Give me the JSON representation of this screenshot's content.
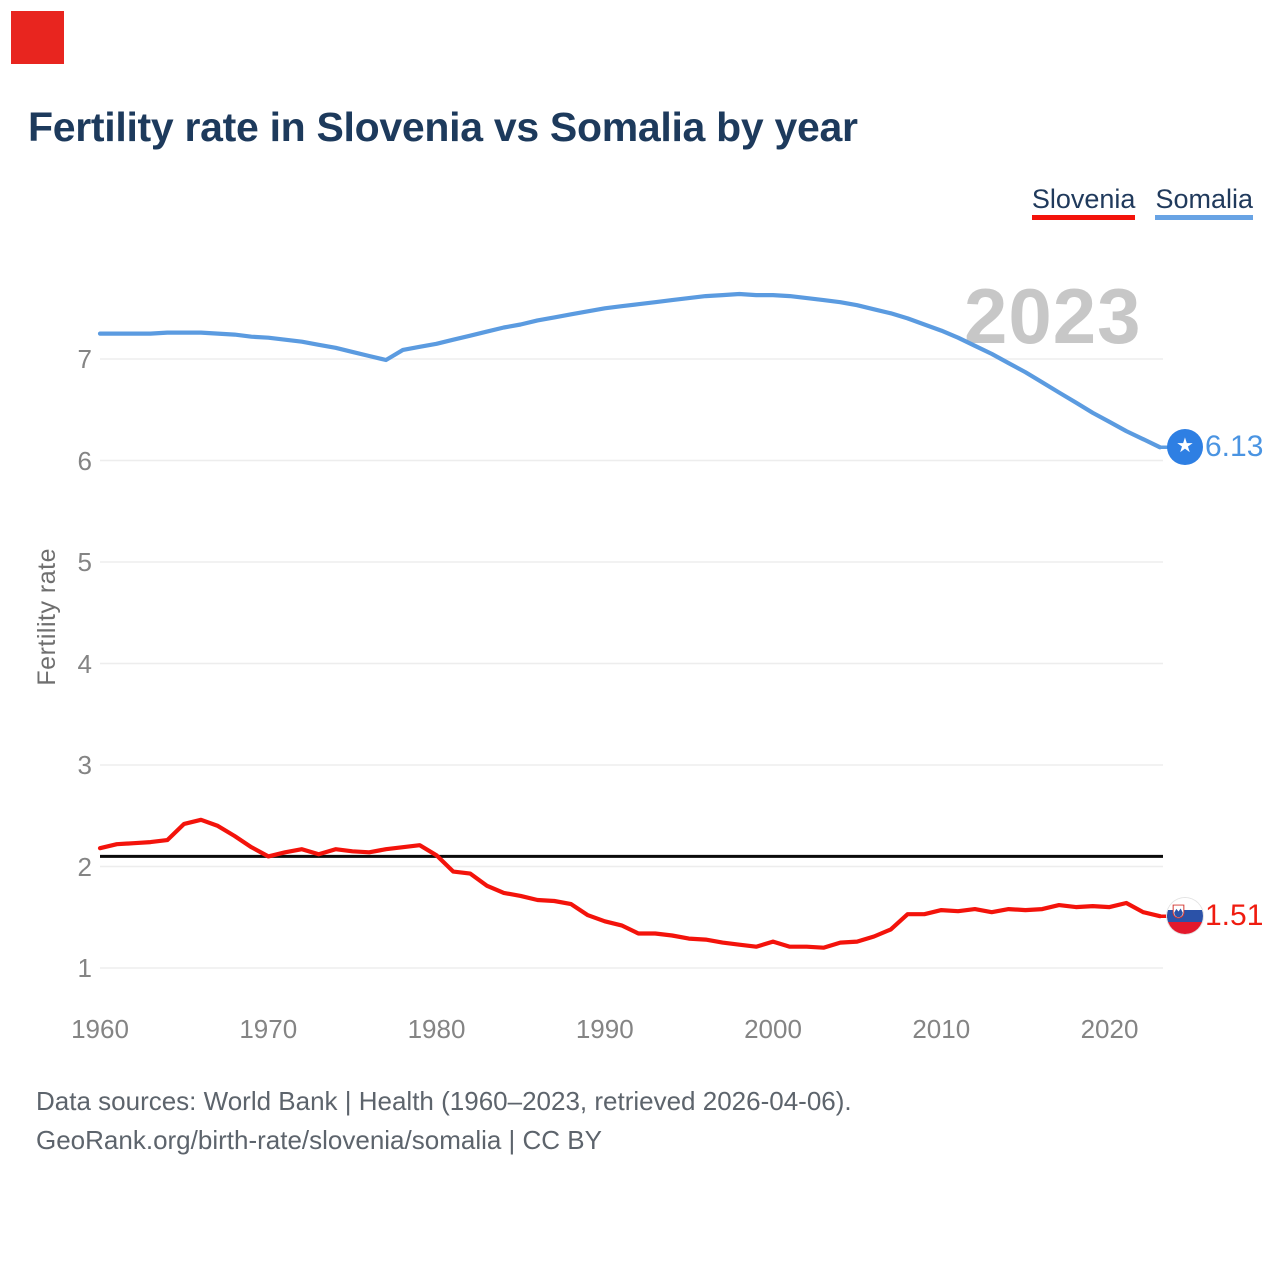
{
  "page": {
    "title": "Fertility rate in Slovenia vs Somalia by year",
    "watermark": "2023",
    "footer_line1": "Data sources: World Bank | Health (1960–2023, retrieved 2026-04-06).",
    "footer_line2": "GeoRank.org/birth-rate/slovenia/somalia | CC BY"
  },
  "legend": [
    {
      "label": "Slovenia",
      "color": "#f3130b"
    },
    {
      "label": "Somalia",
      "color": "#68a3e4"
    }
  ],
  "colors": {
    "title": "#1d3a5c",
    "legend_text": "#203a5c",
    "watermark": "#c7c7c7",
    "click_marker": "#e8251f",
    "grid": "#ededed",
    "reference_line": "#0a0a0a",
    "slovenia_line": "#f3130b",
    "somalia_line": "#5b9be0",
    "slovenia_value_label": "#ef1c10",
    "somalia_value_label": "#4a94e2"
  },
  "flags": {
    "somalia": {
      "circle": "#2e7fe3",
      "star": "#ffffff"
    },
    "slovenia": {
      "white": "#ffffff",
      "blue": "#2b52a8",
      "red": "#e3192c"
    }
  },
  "chart_data": {
    "type": "line",
    "title": "Fertility rate in Slovenia vs Somalia by year",
    "xlabel": "",
    "ylabel": "Fertility rate",
    "x_start": 1960,
    "x_end": 2023,
    "xticks": [
      1960,
      1970,
      1980,
      1990,
      2000,
      2010,
      2020
    ],
    "yticks": [
      1,
      2,
      3,
      4,
      5,
      6,
      7
    ],
    "ylim": [
      0.8,
      7.9
    ],
    "grid": true,
    "legend_position": "top-right",
    "watermark": "2023",
    "reference_line": {
      "value": 2.1,
      "color": "#0a0a0a"
    },
    "years": [
      1960,
      1961,
      1962,
      1963,
      1964,
      1965,
      1966,
      1967,
      1968,
      1969,
      1970,
      1971,
      1972,
      1973,
      1974,
      1975,
      1976,
      1977,
      1978,
      1979,
      1980,
      1981,
      1982,
      1983,
      1984,
      1985,
      1986,
      1987,
      1988,
      1989,
      1990,
      1991,
      1992,
      1993,
      1994,
      1995,
      1996,
      1997,
      1998,
      1999,
      2000,
      2001,
      2002,
      2003,
      2004,
      2005,
      2006,
      2007,
      2008,
      2009,
      2010,
      2011,
      2012,
      2013,
      2014,
      2015,
      2016,
      2017,
      2018,
      2019,
      2020,
      2021,
      2022,
      2023
    ],
    "series": [
      {
        "name": "Slovenia",
        "color": "#f3130b",
        "end_label": "1.51",
        "values": [
          2.18,
          2.22,
          2.23,
          2.24,
          2.26,
          2.42,
          2.46,
          2.4,
          2.3,
          2.19,
          2.1,
          2.14,
          2.17,
          2.12,
          2.17,
          2.15,
          2.14,
          2.17,
          2.19,
          2.21,
          2.11,
          1.95,
          1.93,
          1.81,
          1.74,
          1.71,
          1.67,
          1.66,
          1.63,
          1.52,
          1.46,
          1.42,
          1.34,
          1.34,
          1.32,
          1.29,
          1.28,
          1.25,
          1.23,
          1.21,
          1.26,
          1.21,
          1.21,
          1.2,
          1.25,
          1.26,
          1.31,
          1.38,
          1.53,
          1.53,
          1.57,
          1.56,
          1.58,
          1.55,
          1.58,
          1.57,
          1.58,
          1.62,
          1.6,
          1.61,
          1.6,
          1.64,
          1.55,
          1.51
        ]
      },
      {
        "name": "Somalia",
        "color": "#5b9be0",
        "end_label": "6.13",
        "values": [
          7.25,
          7.25,
          7.25,
          7.25,
          7.26,
          7.26,
          7.26,
          7.25,
          7.24,
          7.22,
          7.21,
          7.19,
          7.17,
          7.14,
          7.11,
          7.07,
          7.03,
          6.99,
          7.09,
          7.12,
          7.15,
          7.19,
          7.23,
          7.27,
          7.31,
          7.34,
          7.38,
          7.41,
          7.44,
          7.47,
          7.5,
          7.52,
          7.54,
          7.56,
          7.58,
          7.6,
          7.62,
          7.63,
          7.64,
          7.63,
          7.63,
          7.62,
          7.6,
          7.58,
          7.56,
          7.53,
          7.49,
          7.45,
          7.4,
          7.34,
          7.28,
          7.21,
          7.13,
          7.05,
          6.96,
          6.87,
          6.77,
          6.67,
          6.57,
          6.47,
          6.38,
          6.29,
          6.21,
          6.13
        ]
      }
    ]
  }
}
